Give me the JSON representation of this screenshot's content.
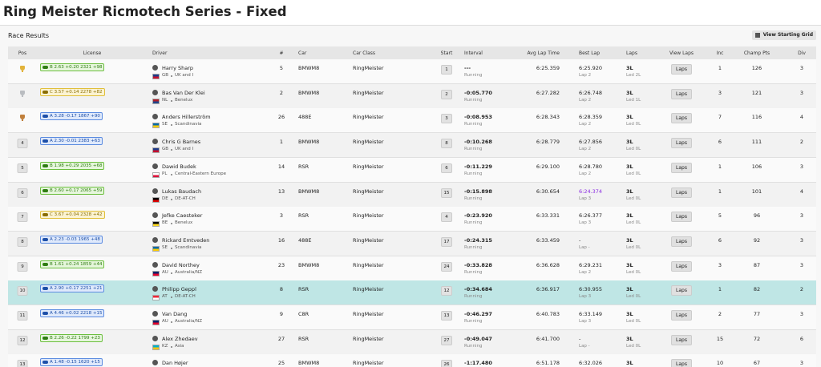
{
  "header": {
    "title": "Ring Meister Ricmotech Series - Fixed"
  },
  "panel": {
    "title": "Race Results",
    "button": "View Starting Grid"
  },
  "table": {
    "columns": [
      "Pos",
      "License",
      "Driver",
      "#",
      "Car",
      "Car Class",
      "Start",
      "Interval",
      "Avg Lap Time",
      "Best Lap",
      "Laps",
      "View Laps",
      "Inc",
      "Champ Pts",
      "Div"
    ],
    "rows": [
      {
        "license": "B 2.63 +0.20 2321 +98",
        "license_color": "green",
        "name": "Harry Sharp",
        "country": "GB",
        "region": "UK and I",
        "number": 5,
        "car": "BMWM8",
        "car_class": "RingMeister",
        "start": 1,
        "interval": "---",
        "status": "Running",
        "avg": "6:25.359",
        "best": "6:25.920",
        "best_lap": "Lap 2",
        "laps": "3L",
        "led": "Led 2L",
        "view": "Laps",
        "inc": 1,
        "pts": 126,
        "div": 3
      },
      {
        "license": "C 3.57 +0.14 2278 +82",
        "license_color": "yellow",
        "name": "Bas Van Der Klei",
        "country": "NL",
        "region": "Benelux",
        "number": 2,
        "car": "BMWM8",
        "car_class": "RingMeister",
        "start": 2,
        "interval": "-0:05.770",
        "status": "Running",
        "avg": "6:27.282",
        "best": "6:26.748",
        "best_lap": "Lap 2",
        "laps": "3L",
        "led": "Led 1L",
        "view": "Laps",
        "inc": 3,
        "pts": 121,
        "div": 3
      },
      {
        "license": "A 3.28 -0.17 1867 +90",
        "license_color": "blue",
        "name": "Anders Hillerström",
        "country": "SE",
        "region": "Scandinavia",
        "number": 26,
        "car": "488E",
        "car_class": "RingMeister",
        "start": 3,
        "interval": "-0:08.953",
        "status": "Running",
        "avg": "6:28.343",
        "best": "6:28.359",
        "best_lap": "Lap 2",
        "laps": "3L",
        "led": "Led 0L",
        "view": "Laps",
        "inc": 7,
        "pts": 116,
        "div": 4
      },
      {
        "pos": 4,
        "license": "A 2.30 -0.01 2383 +63",
        "license_color": "blue",
        "name": "Chris G Barnes",
        "country": "GB",
        "region": "UK and I",
        "number": 1,
        "car": "BMWM8",
        "car_class": "RingMeister",
        "start": 8,
        "interval": "-0:10.268",
        "status": "Running",
        "avg": "6:28.779",
        "best": "6:27.856",
        "best_lap": "Lap 2",
        "laps": "3L",
        "led": "Led 0L",
        "view": "Laps",
        "inc": 6,
        "pts": 111,
        "div": 2
      },
      {
        "pos": 5,
        "license": "B 1.98 +0.29 2035 +68",
        "license_color": "green",
        "name": "Dawid Budek",
        "country": "PL",
        "region": "Central-Eastern Europe",
        "number": 14,
        "car": "RSR",
        "car_class": "RingMeister",
        "start": 6,
        "interval": "-0:11.229",
        "status": "Running",
        "avg": "6:29.100",
        "best": "6:28.780",
        "best_lap": "Lap 2",
        "laps": "3L",
        "led": "Led 0L",
        "view": "Laps",
        "inc": 1,
        "pts": 106,
        "div": 3
      },
      {
        "pos": 6,
        "license": "B 2.60 +0.17 2065 +59",
        "license_color": "green",
        "name": "Lukas Baudach",
        "country": "DE",
        "region": "DE-AT-CH",
        "number": 13,
        "car": "BMWM8",
        "car_class": "RingMeister",
        "start": 15,
        "interval": "-0:15.898",
        "status": "Running",
        "avg": "6:30.654",
        "best": "6:24.374",
        "best_color": "#8a2be2",
        "best_lap": "Lap 3",
        "laps": "3L",
        "led": "Led 0L",
        "view": "Laps",
        "inc": 1,
        "pts": 101,
        "div": 4
      },
      {
        "pos": 7,
        "license": "C 3.67 +0.04 2328 +42",
        "license_color": "yellow",
        "name": "Jefke Caesteker",
        "country": "BE",
        "region": "Benelux",
        "number": 3,
        "car": "RSR",
        "car_class": "RingMeister",
        "start": 4,
        "interval": "-0:23.920",
        "status": "Running",
        "avg": "6:33.331",
        "best": "6:26.377",
        "best_lap": "Lap 3",
        "laps": "3L",
        "led": "Led 0L",
        "view": "Laps",
        "inc": 5,
        "pts": 96,
        "div": 3
      },
      {
        "pos": 8,
        "license": "A 2.23 -0.03 1965 +48",
        "license_color": "blue",
        "name": "Rickard Emtveden",
        "country": "SE",
        "region": "Scandinavia",
        "number": 16,
        "car": "488E",
        "car_class": "RingMeister",
        "start": 17,
        "interval": "-0:24.315",
        "status": "Running",
        "avg": "6:33.459",
        "best": "-",
        "best_lap": "Lap -",
        "laps": "3L",
        "led": "Led 0L",
        "view": "Laps",
        "inc": 6,
        "pts": 92,
        "div": 3
      },
      {
        "pos": 9,
        "license": "B 1.61 +0.24 1859 +44",
        "license_color": "green",
        "name": "David Northey",
        "country": "AU",
        "region": "Australia/NZ",
        "number": 23,
        "car": "BMWM8",
        "car_class": "RingMeister",
        "start": 24,
        "interval": "-0:33.828",
        "status": "Running",
        "avg": "6:36.628",
        "best": "6:29.231",
        "best_lap": "Lap 2",
        "laps": "3L",
        "led": "Led 0L",
        "view": "Laps",
        "inc": 3,
        "pts": 87,
        "div": 3
      },
      {
        "pos": 10,
        "highlight": true,
        "license": "A 2.90 +0.17 2251 +21",
        "license_color": "blue",
        "name": "Philipp Geppl",
        "country": "AT",
        "region": "DE-AT-CH",
        "number": 8,
        "car": "RSR",
        "car_class": "RingMeister",
        "start": 12,
        "interval": "-0:34.684",
        "status": "Running",
        "avg": "6:36.917",
        "best": "6:30.955",
        "best_lap": "Lap 3",
        "laps": "3L",
        "led": "Led 0L",
        "view": "Laps",
        "inc": 1,
        "pts": 82,
        "div": 2
      },
      {
        "pos": 11,
        "license": "A 4.46 +0.02 2218 +15",
        "license_color": "blue",
        "name": "Van Dang",
        "country": "AU",
        "region": "Australia/NZ",
        "number": 9,
        "car": "C8R",
        "car_class": "RingMeister",
        "start": 13,
        "interval": "-0:46.297",
        "status": "Running",
        "avg": "6:40.783",
        "best": "6:33.149",
        "best_lap": "Lap 3",
        "laps": "3L",
        "led": "Led 0L",
        "view": "Laps",
        "inc": 2,
        "pts": 77,
        "div": 3
      },
      {
        "pos": 12,
        "license": "B 2.26 -0.22 1799 +23",
        "license_color": "green",
        "name": "Alex Zhedaev",
        "country": "KZ",
        "region": "Asia",
        "number": 27,
        "car": "RSR",
        "car_class": "RingMeister",
        "start": 27,
        "interval": "-0:49.047",
        "status": "Running",
        "avg": "6:41.700",
        "best": "-",
        "best_lap": "Lap -",
        "laps": "3L",
        "led": "Led 0L",
        "view": "Laps",
        "inc": 15,
        "pts": 72,
        "div": 6
      },
      {
        "pos": 13,
        "license": "A 1.48 -0.15 1620 +15",
        "license_color": "blue",
        "name": "Dan Højer",
        "number": 25,
        "car": "BMWM8",
        "car_class": "RingMeister",
        "start": 26,
        "interval": "-1:17.480",
        "avg": "6:51.178",
        "best": "6:32.026",
        "laps": "3L",
        "view": "Laps",
        "inc": 10,
        "pts": 67,
        "div": 3
      }
    ]
  }
}
